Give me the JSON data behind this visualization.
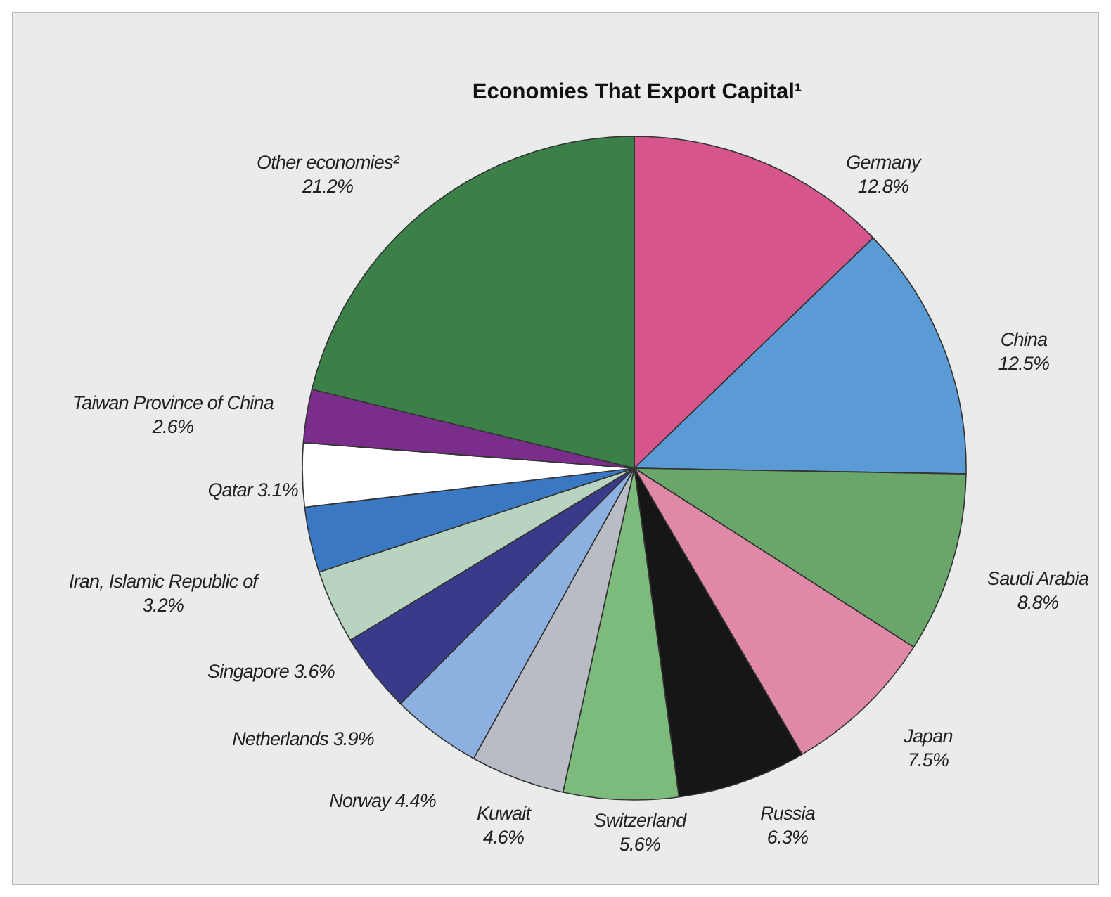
{
  "chart_data": {
    "type": "pie",
    "title": "Economies That Export Capital¹",
    "categories": [
      "Germany",
      "China",
      "Saudi Arabia",
      "Japan",
      "Russia",
      "Switzerland",
      "Kuwait",
      "Norway",
      "Netherlands",
      "Singapore",
      "Iran, Islamic Republic of",
      "Qatar",
      "Taiwan Province of China",
      "Other economies²"
    ],
    "values": [
      12.8,
      12.5,
      8.8,
      7.5,
      6.3,
      5.6,
      4.6,
      4.4,
      3.9,
      3.6,
      3.2,
      3.1,
      2.6,
      21.2
    ],
    "colors": [
      "#d6558a",
      "#5b9bd5",
      "#6aa56a",
      "#e088a8",
      "#161616",
      "#7dbb7d",
      "#b9bcc4",
      "#8cb0e0",
      "#3a3a8a",
      "#b8d4c0",
      "#3b78c4",
      "#ffffff",
      "#7b2d8b",
      "#3a8048"
    ],
    "value_labels": [
      "12.8%",
      "12.5%",
      "8.8%",
      "7.5%",
      "6.3%",
      "5.6%",
      "4.6%",
      "4.4%",
      "3.9%",
      "3.6%",
      "3.2%",
      "3.1%",
      "2.6%",
      "21.2%"
    ]
  }
}
